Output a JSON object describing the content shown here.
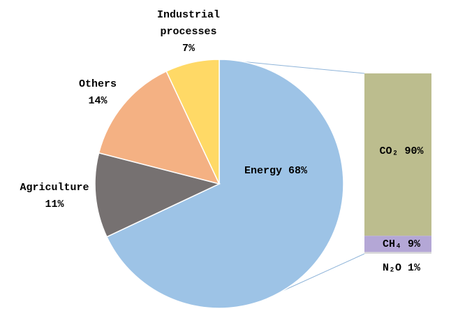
{
  "chart_data": [
    {
      "type": "pie",
      "categories": [
        "Energy",
        "Agriculture",
        "Others",
        "Industrial processes"
      ],
      "values": [
        68,
        11,
        14,
        7
      ],
      "value_labels": [
        "68%",
        "11%",
        "14%",
        "7%"
      ],
      "colors": [
        "#9dc3e6",
        "#767171",
        "#f4b183",
        "#ffd966"
      ]
    },
    {
      "type": "bar",
      "stacked": true,
      "categories": [
        "CO₂",
        "CH₄",
        "N₂O"
      ],
      "values": [
        90,
        9,
        1
      ],
      "value_labels": [
        "90%",
        "9%",
        "1%"
      ],
      "colors": [
        "#bcbd8e",
        "#b4a7d6",
        "#d9d9d9"
      ]
    }
  ]
}
